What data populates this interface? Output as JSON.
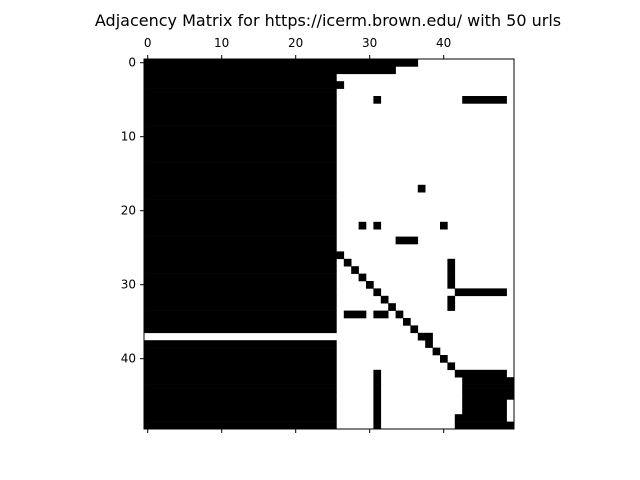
{
  "chart_data": {
    "type": "heatmap",
    "title": "Adjacency Matrix for https://icerm.brown.edu/ with 50 urls",
    "size": 50,
    "colormap": {
      "one": "#000000",
      "zero": "#ffffff"
    },
    "x_axis": {
      "position": "top-and-bottom",
      "ticks": [
        0,
        10,
        20,
        30,
        40
      ]
    },
    "y_axis": {
      "position": "left",
      "ticks": [
        0,
        10,
        20,
        30,
        40
      ]
    },
    "grid": false,
    "cell_runs": [
      {
        "rows": [
          0,
          49
        ],
        "cols": [
          0,
          25
        ]
      },
      {
        "rows": [
          37,
          37
        ],
        "cols": [
          0,
          25
        ],
        "value": 0
      },
      {
        "rows": [
          0,
          0
        ],
        "cols": [
          26,
          36
        ]
      },
      {
        "rows": [
          1,
          1
        ],
        "cols": [
          26,
          33
        ]
      },
      {
        "rows": [
          3,
          3
        ],
        "cols": [
          26,
          26
        ]
      },
      {
        "rows": [
          5,
          5
        ],
        "cols": [
          31,
          31
        ]
      },
      {
        "rows": [
          5,
          5
        ],
        "cols": [
          43,
          48
        ]
      },
      {
        "rows": [
          17,
          17
        ],
        "cols": [
          37,
          37
        ]
      },
      {
        "rows": [
          22,
          22
        ],
        "cols": [
          29,
          29
        ]
      },
      {
        "rows": [
          22,
          22
        ],
        "cols": [
          31,
          31
        ]
      },
      {
        "rows": [
          22,
          22
        ],
        "cols": [
          40,
          40
        ]
      },
      {
        "rows": [
          24,
          24
        ],
        "cols": [
          34,
          36
        ]
      },
      {
        "rows": [
          26,
          26
        ],
        "cols": [
          25,
          26
        ]
      },
      {
        "rows": [
          27,
          27
        ],
        "cols": [
          27,
          27
        ]
      },
      {
        "rows": [
          28,
          28
        ],
        "cols": [
          28,
          28
        ]
      },
      {
        "rows": [
          29,
          29
        ],
        "cols": [
          29,
          29
        ]
      },
      {
        "rows": [
          30,
          30
        ],
        "cols": [
          30,
          30
        ]
      },
      {
        "rows": [
          31,
          31
        ],
        "cols": [
          31,
          31
        ]
      },
      {
        "rows": [
          32,
          32
        ],
        "cols": [
          32,
          32
        ]
      },
      {
        "rows": [
          33,
          33
        ],
        "cols": [
          33,
          33
        ]
      },
      {
        "rows": [
          34,
          34
        ],
        "cols": [
          34,
          34
        ]
      },
      {
        "rows": [
          35,
          35
        ],
        "cols": [
          35,
          35
        ]
      },
      {
        "rows": [
          36,
          36
        ],
        "cols": [
          36,
          36
        ]
      },
      {
        "rows": [
          37,
          37
        ],
        "cols": [
          37,
          38
        ]
      },
      {
        "rows": [
          38,
          38
        ],
        "cols": [
          38,
          38
        ]
      },
      {
        "rows": [
          39,
          39
        ],
        "cols": [
          39,
          39
        ]
      },
      {
        "rows": [
          40,
          40
        ],
        "cols": [
          40,
          40
        ]
      },
      {
        "rows": [
          41,
          41
        ],
        "cols": [
          41,
          41
        ]
      },
      {
        "rows": [
          42,
          42
        ],
        "cols": [
          42,
          42
        ]
      },
      {
        "rows": [
          27,
          30
        ],
        "cols": [
          41,
          41
        ]
      },
      {
        "rows": [
          32,
          33
        ],
        "cols": [
          41,
          41
        ]
      },
      {
        "rows": [
          31,
          31
        ],
        "cols": [
          42,
          48
        ]
      },
      {
        "rows": [
          34,
          34
        ],
        "cols": [
          27,
          29
        ]
      },
      {
        "rows": [
          34,
          34
        ],
        "cols": [
          31,
          32
        ]
      },
      {
        "rows": [
          42,
          42
        ],
        "cols": [
          43,
          48
        ]
      },
      {
        "rows": [
          43,
          49
        ],
        "cols": [
          43,
          48
        ]
      },
      {
        "rows": [
          43,
          45
        ],
        "cols": [
          49,
          49
        ]
      },
      {
        "rows": [
          48,
          49
        ],
        "cols": [
          42,
          42
        ]
      },
      {
        "rows": [
          49,
          49
        ],
        "cols": [
          49,
          49
        ]
      },
      {
        "rows": [
          42,
          49
        ],
        "cols": [
          31,
          31
        ]
      }
    ]
  }
}
